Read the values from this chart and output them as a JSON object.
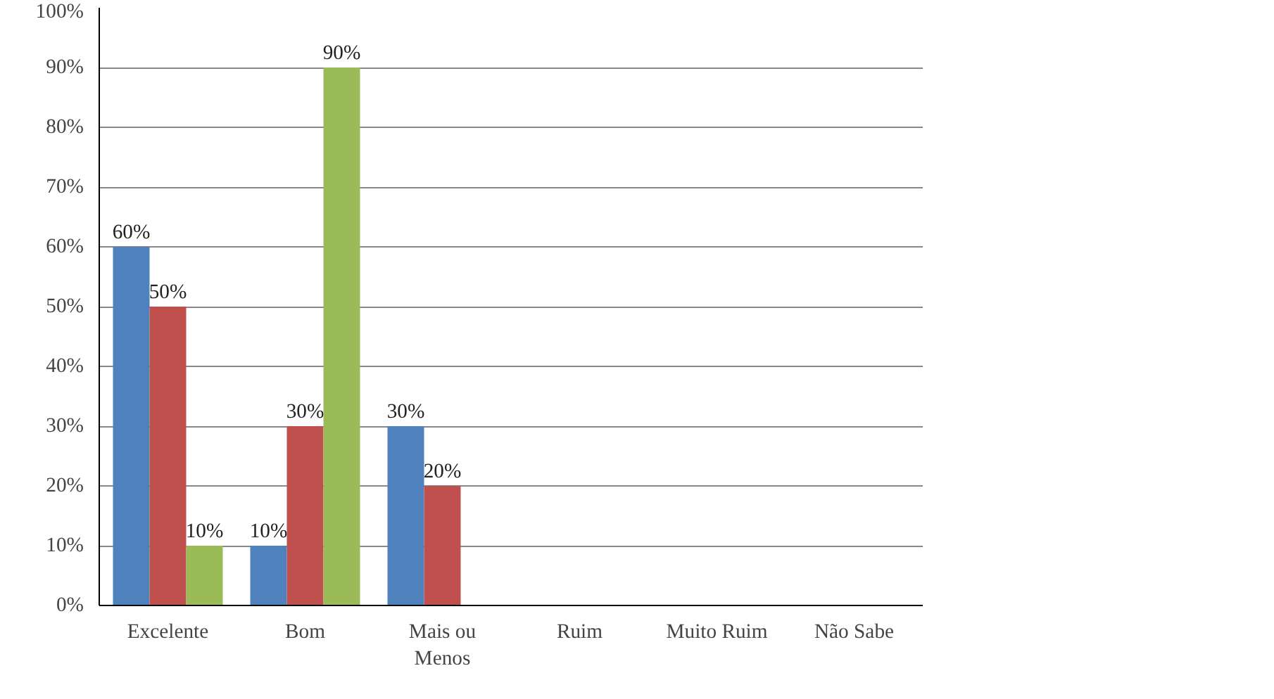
{
  "chart_data": {
    "type": "bar",
    "categories": [
      "Excelente",
      "Bom",
      "Mais ou Menos",
      "Ruim",
      "Muito Ruim",
      "Não Sabe"
    ],
    "series": [
      {
        "color": "#4f81bd",
        "values": [
          60,
          10,
          30,
          null,
          null,
          null
        ],
        "value_labels": [
          "60%",
          "10%",
          "30%",
          null,
          null,
          null
        ]
      },
      {
        "color": "#c0504d",
        "values": [
          50,
          30,
          20,
          null,
          null,
          null
        ],
        "value_labels": [
          "50%",
          "30%",
          "20%",
          null,
          null,
          null
        ]
      },
      {
        "color": "#9bbb59",
        "values": [
          10,
          90,
          null,
          null,
          null,
          null
        ],
        "value_labels": [
          "10%",
          "90%",
          null,
          null,
          null,
          null
        ]
      }
    ],
    "ylim": [
      0,
      100
    ],
    "yticks": [
      {
        "value": 0,
        "label": "0%"
      },
      {
        "value": 10,
        "label": "10%"
      },
      {
        "value": 20,
        "label": "20%"
      },
      {
        "value": 30,
        "label": "30%"
      },
      {
        "value": 40,
        "label": "40%"
      },
      {
        "value": 50,
        "label": "50%"
      },
      {
        "value": 60,
        "label": "60%"
      },
      {
        "value": 70,
        "label": "70%"
      },
      {
        "value": 80,
        "label": "80%"
      },
      {
        "value": 90,
        "label": "90%"
      },
      {
        "value": 100,
        "label": "100%"
      }
    ],
    "grid": "y"
  }
}
